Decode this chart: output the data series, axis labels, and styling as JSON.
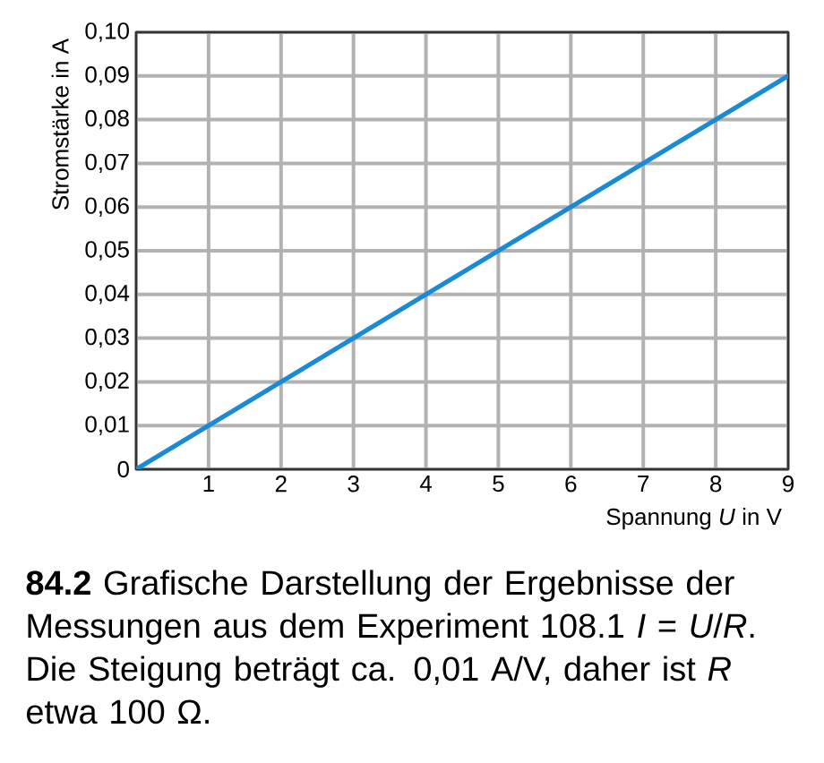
{
  "chart_data": {
    "type": "line",
    "xlabel": "Spannung *U* in V",
    "ylabel": "Stromstärke in A",
    "x": [
      0,
      9
    ],
    "series": [
      {
        "color": "#1a8ad4",
        "values": [
          0,
          0.09
        ]
      }
    ],
    "xlim": [
      0,
      9
    ],
    "xticks": [
      {
        "value": 0,
        "label": null
      },
      1,
      2,
      3,
      4,
      5,
      6,
      7,
      8,
      9
    ],
    "ylim": [
      0,
      0.1
    ],
    "yticks": [
      0,
      {
        "value": 0.01,
        "label": "0,01"
      },
      {
        "value": 0.02,
        "label": "0,02"
      },
      {
        "value": 0.03,
        "label": "0,03"
      },
      {
        "value": 0.04,
        "label": "0,04"
      },
      {
        "value": 0.05,
        "label": "0,05"
      },
      {
        "value": 0.06,
        "label": "0,06"
      },
      {
        "value": 0.07,
        "label": "0,07"
      },
      {
        "value": 0.08,
        "label": "0,08"
      },
      {
        "value": 0.09,
        "label": "0,09"
      },
      {
        "value": 0.1,
        "label": "0,10"
      }
    ],
    "grid": true,
    "line_style": "solid",
    "annotations": [
      "**84.2** Grafische Darstellung der Ergebnisse der Messungen aus dem Experiment 108.1 *I* = *U*/*R*. Die Steigung beträgt ca. 0,01 A/V, daher ist *R* etwa 100 Ω."
    ]
  }
}
